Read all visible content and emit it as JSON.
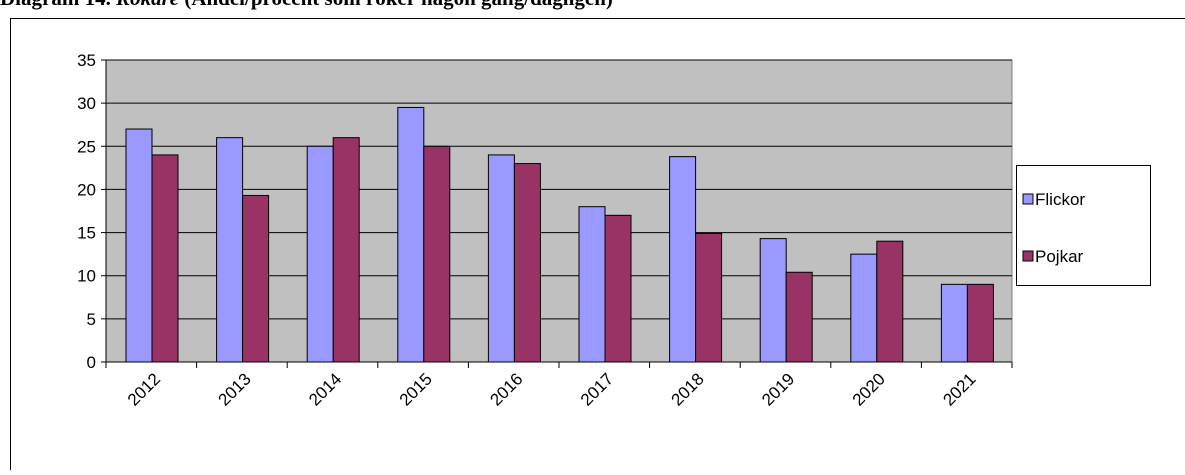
{
  "chart_data": {
    "type": "bar",
    "title": {
      "number": "Diagram 14.",
      "name": "Rökare",
      "description": "(Andel/procent som röker någon gång/dagligen)"
    },
    "categories": [
      "2012",
      "2013",
      "2014",
      "2015",
      "2016",
      "2017",
      "2018",
      "2019",
      "2020",
      "2021"
    ],
    "series": [
      {
        "name": "Flickor",
        "color": "#9999ff",
        "values": [
          27,
          26,
          25,
          29.5,
          24,
          18,
          23.8,
          14.3,
          12.5,
          9
        ]
      },
      {
        "name": "Pojkar",
        "color": "#993366",
        "values": [
          24,
          19.3,
          26,
          25,
          23,
          17,
          14.9,
          10.4,
          14,
          9
        ]
      }
    ],
    "ylim": [
      0,
      35
    ],
    "yticks": [
      0,
      5,
      10,
      15,
      20,
      25,
      30,
      35
    ],
    "grid": true,
    "legend": "right"
  }
}
